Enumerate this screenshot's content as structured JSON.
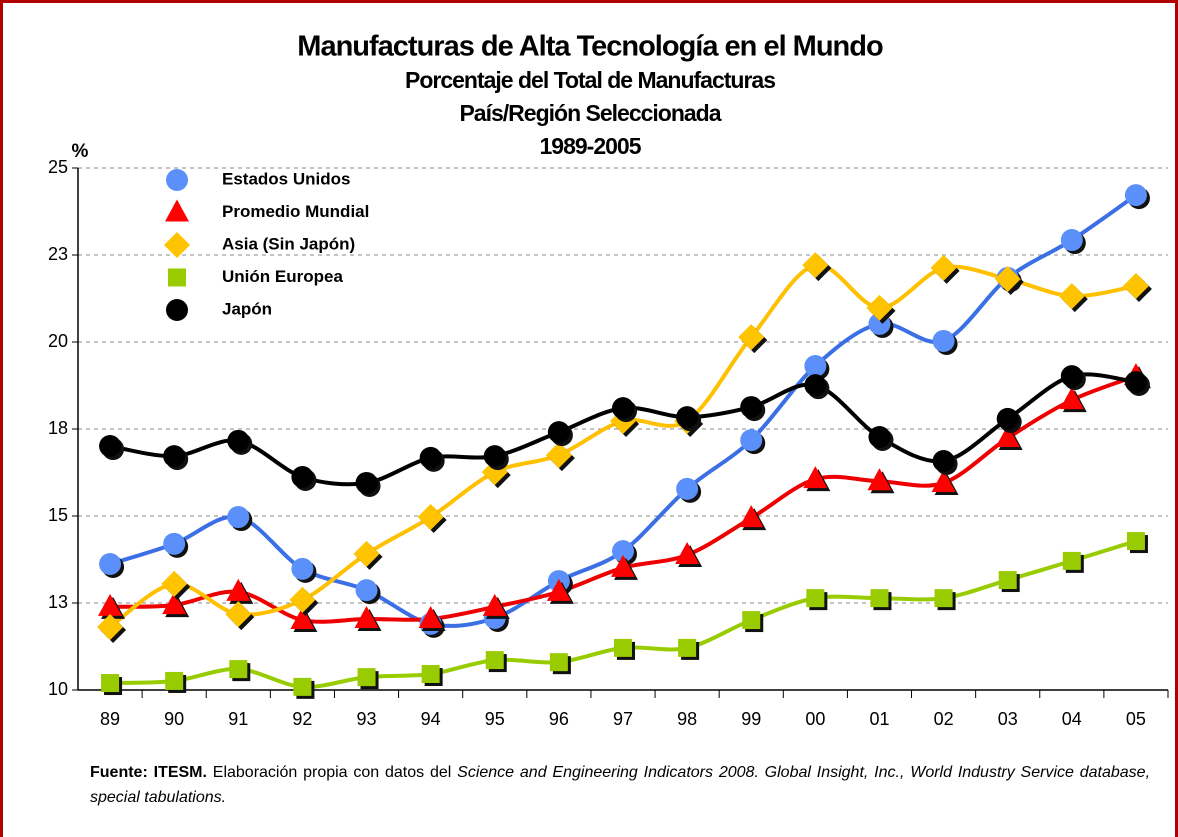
{
  "chart_data": {
    "type": "line",
    "title": "Manufacturas de Alta Tecnología en el Mundo",
    "subtitle": "Porcentaje del Total de Manufacturas",
    "subtitle2": "País/Región Seleccionada",
    "period": "1989-2005",
    "y_label": "%",
    "categories": [
      "89",
      "90",
      "91",
      "92",
      "93",
      "94",
      "95",
      "96",
      "97",
      "98",
      "99",
      "00",
      "01",
      "02",
      "03",
      "04",
      "05"
    ],
    "ylim": [
      10,
      25
    ],
    "yticks": [
      10,
      {
        "value": 12.5,
        "label": "13"
      },
      15,
      {
        "value": 17.5,
        "label": "18"
      },
      20,
      {
        "value": 22.5,
        "label": "23"
      },
      25
    ],
    "grid": true,
    "legend": "top-left",
    "series": [
      {
        "name": "Estados Unidos",
        "color": "#3b6fe6",
        "marker_color": "#5b8ff9",
        "marker": "circle",
        "values": [
          13.62,
          14.2,
          14.97,
          13.48,
          12.87,
          11.9,
          12.07,
          13.13,
          13.99,
          15.78,
          17.18,
          19.31,
          20.52,
          20.03,
          21.84,
          22.93,
          24.22
        ]
      },
      {
        "name": "Promedio Mundial",
        "color": "#ee0000",
        "marker_color": "#ff0000",
        "marker": "triangle",
        "values": [
          12.39,
          12.44,
          12.82,
          12.01,
          12.04,
          12.04,
          12.39,
          12.82,
          13.51,
          13.88,
          14.94,
          16.06,
          16.0,
          15.95,
          17.24,
          18.33,
          19.02
        ]
      },
      {
        "name": "Asia (Sin Japón)",
        "color": "#ffc000",
        "marker_color": "#ffc400",
        "marker": "diamond",
        "values": [
          11.81,
          13.05,
          12.18,
          12.59,
          13.91,
          14.97,
          16.26,
          16.75,
          17.73,
          17.73,
          20.14,
          22.21,
          20.98,
          22.13,
          21.81,
          21.32,
          21.61
        ]
      },
      {
        "name": "Unión Europea",
        "color": "#99cc00",
        "marker_color": "#99cc00",
        "marker": "square",
        "values": [
          10.2,
          10.26,
          10.6,
          10.09,
          10.37,
          10.46,
          10.86,
          10.8,
          11.21,
          11.21,
          12.01,
          12.64,
          12.64,
          12.64,
          13.16,
          13.71,
          14.28
        ]
      },
      {
        "name": "Japón",
        "color": "#000000",
        "marker_color": "#000000",
        "marker": "circle",
        "values": [
          17.01,
          16.72,
          17.16,
          16.12,
          15.95,
          16.67,
          16.72,
          17.41,
          18.1,
          17.84,
          18.13,
          18.76,
          17.27,
          16.58,
          17.79,
          19.02,
          18.85
        ]
      }
    ],
    "source": {
      "label": "Fuente: ITESM.",
      "text": "Elaboración propia con datos del",
      "reference": "Science and Engineering Indicators 2008. Global Insight, Inc., World Industry Service database, special tabulations."
    }
  }
}
